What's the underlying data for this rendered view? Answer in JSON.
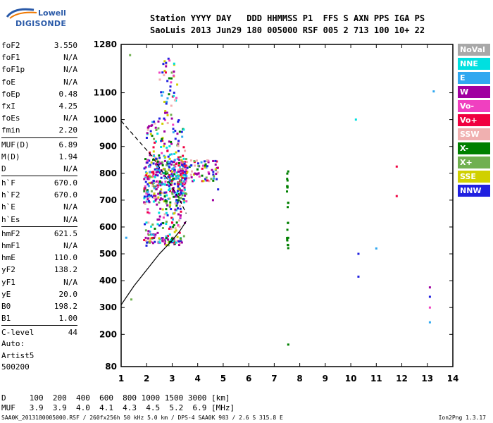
{
  "logo": {
    "line1": "Lowell",
    "line2": "DIGISONDE"
  },
  "header": {
    "line1": "Station YYYY DAY   DDD HHMMSS P1  FFS S AXN PPS IGA PS",
    "line2": "SaoLuis 2013 Jun29 180 005000 RSF 005 2 713 100 10+ 22"
  },
  "params": [
    {
      "k": "foF2",
      "v": "3.550"
    },
    {
      "k": "foF1",
      "v": "N/A"
    },
    {
      "k": "foF1p",
      "v": "N/A"
    },
    {
      "k": "foE",
      "v": "N/A"
    },
    {
      "k": "foEp",
      "v": "0.48"
    },
    {
      "k": "fxI",
      "v": "4.25"
    },
    {
      "k": "foEs",
      "v": "N/A"
    },
    {
      "k": "fmin",
      "v": "2.20"
    },
    {
      "k": "MUF(D)",
      "v": "6.89",
      "sep": true
    },
    {
      "k": "M(D)",
      "v": "1.94"
    },
    {
      "k": "D",
      "v": "N/A"
    },
    {
      "k": "h`F",
      "v": "670.0",
      "sep": true
    },
    {
      "k": "h`F2",
      "v": "670.0"
    },
    {
      "k": "h`E",
      "v": "N/A"
    },
    {
      "k": "h`Es",
      "v": "N/A"
    },
    {
      "k": "hmF2",
      "v": "621.5",
      "sep": true
    },
    {
      "k": "hmF1",
      "v": "N/A"
    },
    {
      "k": "hmE",
      "v": "110.0"
    },
    {
      "k": "yF2",
      "v": "138.2"
    },
    {
      "k": "yF1",
      "v": "N/A"
    },
    {
      "k": "yE",
      "v": "20.0"
    },
    {
      "k": "B0",
      "v": "198.2"
    },
    {
      "k": "B1",
      "v": "1.00"
    },
    {
      "k": "C-level",
      "v": "44",
      "sep": true
    }
  ],
  "auto": {
    "line1": "Auto:",
    "line2": "Artist5",
    "line3": "500200"
  },
  "bottom": {
    "d_line": "D     100  200  400  600  800 1000 1500 3000 [km]",
    "muf_line": "MUF   3.9  3.9  4.0  4.1  4.3  4.5  5.2  6.9 [MHz]"
  },
  "footer": {
    "left": "SAA0K_2013180005000.RSF / 260fx256h 50 kHz 5.0 km / DPS-4 SAA0K 903 / 2.6 S 315.8 E",
    "right": "Ion2Png 1.3.17"
  },
  "legend": [
    {
      "label": "NoVal",
      "color": "#a8a8a8"
    },
    {
      "label": "NNE",
      "color": "#00e0e0"
    },
    {
      "label": "E",
      "color": "#30a8f0"
    },
    {
      "label": "W",
      "color": "#a000a0"
    },
    {
      "label": "Vo-",
      "color": "#f040c0"
    },
    {
      "label": "Vo+",
      "color": "#f00040"
    },
    {
      "label": "SSW",
      "color": "#f0b0b0"
    },
    {
      "label": "X-",
      "color": "#008000"
    },
    {
      "label": "X+",
      "color": "#70b050"
    },
    {
      "label": "SSE",
      "color": "#d0d000"
    },
    {
      "label": "NNW",
      "color": "#2020e0"
    }
  ],
  "chart_data": {
    "type": "scatter",
    "xlabel": "",
    "ylabel": "",
    "xlim": [
      1,
      14
    ],
    "ylim": [
      80,
      1280
    ],
    "x_ticks": [
      1,
      2,
      3,
      4,
      5,
      6,
      7,
      8,
      9,
      10,
      11,
      12,
      13,
      14
    ],
    "y_ticks": [
      80,
      200,
      300,
      400,
      500,
      600,
      700,
      800,
      900,
      1000,
      1100,
      1280
    ],
    "grid": false,
    "profile_solid": [
      [
        1.0,
        310
      ],
      [
        1.5,
        380
      ],
      [
        2.0,
        440
      ],
      [
        2.5,
        500
      ],
      [
        3.0,
        550
      ],
      [
        3.3,
        585
      ],
      [
        3.55,
        621.5
      ]
    ],
    "profile_dashed": [
      [
        1.0,
        995
      ],
      [
        1.6,
        930
      ],
      [
        2.2,
        865
      ],
      [
        2.8,
        780
      ],
      [
        3.3,
        700
      ],
      [
        3.55,
        650
      ]
    ],
    "clusters": [
      {
        "name": "F-trace",
        "x": [
          1.9,
          3.6
        ],
        "y": [
          690,
          860
        ],
        "n": 380
      },
      {
        "name": "F-upper",
        "x": [
          2.0,
          3.5
        ],
        "y": [
          860,
          1000
        ],
        "n": 80
      },
      {
        "name": "F-high",
        "x": [
          2.5,
          3.2
        ],
        "y": [
          1000,
          1230
        ],
        "n": 50
      },
      {
        "name": "F-spread",
        "x": [
          3.3,
          4.8
        ],
        "y": [
          770,
          850
        ],
        "n": 90
      },
      {
        "name": "F-low",
        "x": [
          1.9,
          3.5
        ],
        "y": [
          530,
          690
        ],
        "n": 110
      },
      {
        "name": "base",
        "x": [
          2.0,
          3.4
        ],
        "y": [
          540,
          560
        ],
        "n": 60
      },
      {
        "name": "column-7.5",
        "x": [
          7.5,
          7.55
        ],
        "y": [
          520,
          810
        ],
        "n": 22
      }
    ],
    "isolated_points": [
      {
        "x": 1.35,
        "y": 1240,
        "c": "#70b050"
      },
      {
        "x": 1.4,
        "y": 330,
        "c": "#70b050"
      },
      {
        "x": 1.2,
        "y": 560,
        "c": "#30a8f0"
      },
      {
        "x": 7.55,
        "y": 162,
        "c": "#008000"
      },
      {
        "x": 10.2,
        "y": 1000,
        "c": "#00e0e0"
      },
      {
        "x": 10.3,
        "y": 500,
        "c": "#2020e0"
      },
      {
        "x": 10.3,
        "y": 415,
        "c": "#2020e0"
      },
      {
        "x": 11.0,
        "y": 520,
        "c": "#30a8f0"
      },
      {
        "x": 11.8,
        "y": 825,
        "c": "#f00040"
      },
      {
        "x": 11.8,
        "y": 715,
        "c": "#f00040"
      },
      {
        "x": 13.1,
        "y": 375,
        "c": "#a000a0"
      },
      {
        "x": 13.1,
        "y": 340,
        "c": "#2020e0"
      },
      {
        "x": 13.1,
        "y": 300,
        "c": "#f040c0"
      },
      {
        "x": 13.1,
        "y": 245,
        "c": "#30a8f0"
      },
      {
        "x": 13.25,
        "y": 1105,
        "c": "#30a8f0"
      },
      {
        "x": 4.6,
        "y": 700,
        "c": "#a000a0"
      },
      {
        "x": 4.8,
        "y": 740,
        "c": "#2020e0"
      }
    ]
  }
}
